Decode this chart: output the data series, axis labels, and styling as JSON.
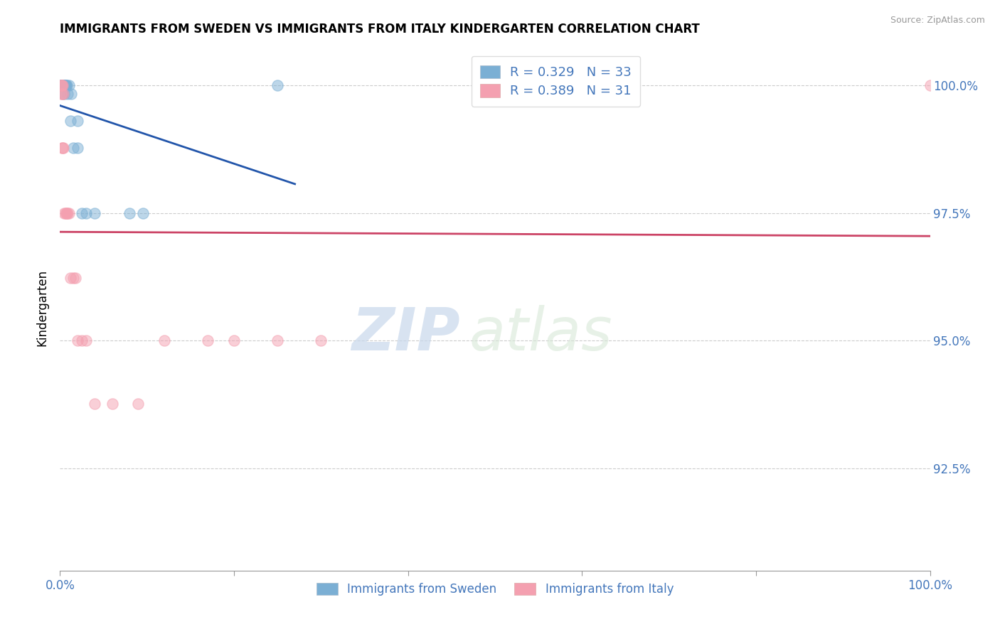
{
  "title": "IMMIGRANTS FROM SWEDEN VS IMMIGRANTS FROM ITALY KINDERGARTEN CORRELATION CHART",
  "source_text": "Source: ZipAtlas.com",
  "xlabel": "",
  "ylabel": "Kindergarten",
  "xlim": [
    0.0,
    1.0
  ],
  "ylim": [
    0.905,
    1.008
  ],
  "ytick_labels": [
    "92.5%",
    "95.0%",
    "97.5%",
    "100.0%"
  ],
  "ytick_positions": [
    0.925,
    0.95,
    0.975,
    1.0
  ],
  "legend_labels": [
    "Immigrants from Sweden",
    "Immigrants from Italy"
  ],
  "legend_r": [
    0.329,
    0.389
  ],
  "legend_n": [
    33,
    31
  ],
  "blue_color": "#7BAFD4",
  "pink_color": "#F4A0B0",
  "blue_line_color": "#2255AA",
  "pink_line_color": "#CC4466",
  "sweden_x": [
    0.001,
    0.001,
    0.001,
    0.002,
    0.002,
    0.002,
    0.002,
    0.003,
    0.003,
    0.003,
    0.003,
    0.004,
    0.004,
    0.005,
    0.005,
    0.005,
    0.006,
    0.006,
    0.007,
    0.008,
    0.009,
    0.01,
    0.012,
    0.013,
    0.015,
    0.02,
    0.02,
    0.025,
    0.03,
    0.04,
    0.08,
    0.095,
    0.25
  ],
  "sweden_y": [
    1.0,
    1.0,
    1.0,
    1.0,
    1.0,
    1.0,
    1.0,
    1.0,
    1.0,
    1.0,
    0.9983,
    1.0,
    1.0,
    1.0,
    1.0,
    0.9983,
    1.0,
    1.0,
    1.0,
    1.0,
    0.9983,
    1.0,
    0.993,
    0.9983,
    0.9877,
    0.9877,
    0.993,
    0.975,
    0.9749,
    0.975,
    0.9749,
    0.975,
    1.0
  ],
  "italy_x": [
    0.001,
    0.001,
    0.001,
    0.002,
    0.002,
    0.002,
    0.003,
    0.003,
    0.004,
    0.004,
    0.005,
    0.006,
    0.007,
    0.008,
    0.009,
    0.01,
    0.012,
    0.015,
    0.018,
    0.02,
    0.025,
    0.03,
    0.04,
    0.06,
    0.09,
    0.12,
    0.17,
    0.2,
    0.25,
    0.3,
    1.0
  ],
  "italy_y": [
    1.0,
    1.0,
    0.9983,
    1.0,
    0.9983,
    0.9877,
    1.0,
    0.9877,
    0.9983,
    0.9877,
    0.975,
    0.975,
    0.975,
    0.9749,
    0.9749,
    0.9749,
    0.9623,
    0.9623,
    0.9623,
    0.9501,
    0.9501,
    0.95,
    0.9377,
    0.9377,
    0.9377,
    0.9501,
    0.9501,
    0.9501,
    0.9501,
    0.9501,
    1.0
  ],
  "watermark_zip": "ZIP",
  "watermark_atlas": "atlas",
  "grid_color": "#CCCCCC",
  "background_color": "#FFFFFF",
  "label_color": "#4477BB"
}
